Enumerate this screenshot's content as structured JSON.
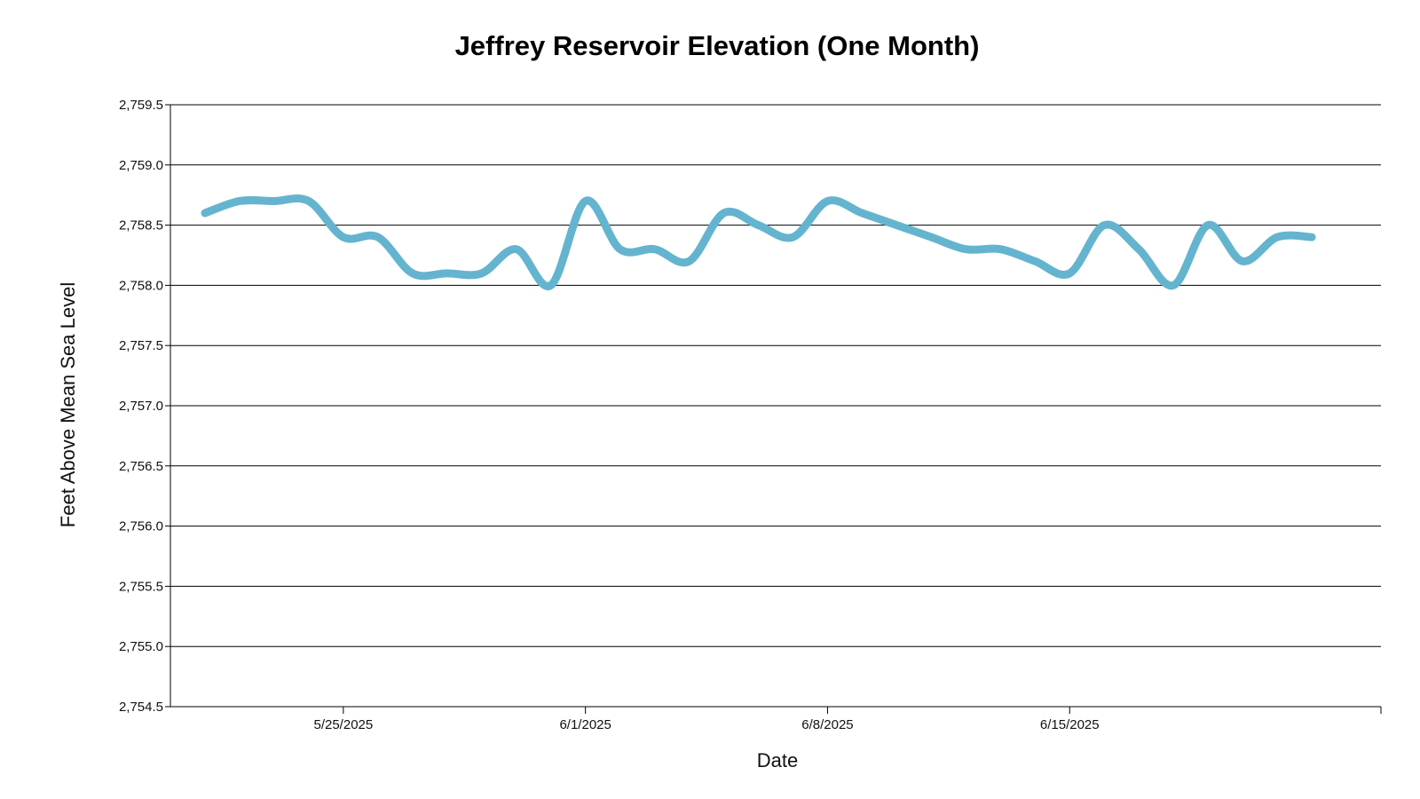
{
  "chart_data": {
    "type": "line",
    "title": "Jeffrey Reservoir Elevation (One Month)",
    "xlabel": "Date",
    "ylabel": "Feet Above Mean Sea Level",
    "ylim": [
      2754.5,
      2759.5
    ],
    "yticks": [
      2754.5,
      2755.0,
      2755.5,
      2756.0,
      2756.5,
      2757.0,
      2757.5,
      2758.0,
      2758.5,
      2759.0,
      2759.5
    ],
    "ytick_labels": [
      "2,754.5",
      "2,755.0",
      "2,755.5",
      "2,756.0",
      "2,756.5",
      "2,757.0",
      "2,757.5",
      "2,758.0",
      "2,758.5",
      "2,759.0",
      "2,759.5"
    ],
    "xlim": [
      "2025-05-20",
      "2025-06-24"
    ],
    "xticks": [
      "2025-05-25",
      "2025-06-01",
      "2025-06-08",
      "2025-06-15"
    ],
    "xtick_labels": [
      "5/25/2025",
      "6/1/2025",
      "6/8/2025",
      "6/15/2025"
    ],
    "grid": true,
    "color": "#65b4cf",
    "series": [
      {
        "x": [
          "2025-05-21",
          "2025-05-22",
          "2025-05-23",
          "2025-05-24",
          "2025-05-25",
          "2025-05-26",
          "2025-05-27",
          "2025-05-28",
          "2025-05-29",
          "2025-05-30",
          "2025-05-31",
          "2025-06-01",
          "2025-06-02",
          "2025-06-03",
          "2025-06-04",
          "2025-06-05",
          "2025-06-06",
          "2025-06-07",
          "2025-06-08",
          "2025-06-09",
          "2025-06-10",
          "2025-06-11",
          "2025-06-12",
          "2025-06-13",
          "2025-06-14",
          "2025-06-15",
          "2025-06-16",
          "2025-06-17",
          "2025-06-18",
          "2025-06-19",
          "2025-06-20",
          "2025-06-21",
          "2025-06-22"
        ],
        "y": [
          2758.6,
          2758.7,
          2758.7,
          2758.7,
          2758.4,
          2758.4,
          2758.1,
          2758.1,
          2758.1,
          2758.3,
          2758.0,
          2758.7,
          2758.3,
          2758.3,
          2758.2,
          2758.6,
          2758.5,
          2758.4,
          2758.7,
          2758.6,
          2758.5,
          2758.4,
          2758.3,
          2758.3,
          2758.2,
          2758.1,
          2758.5,
          2758.3,
          2758.0,
          2758.5,
          2758.2,
          2758.4,
          2758.4
        ]
      }
    ]
  }
}
